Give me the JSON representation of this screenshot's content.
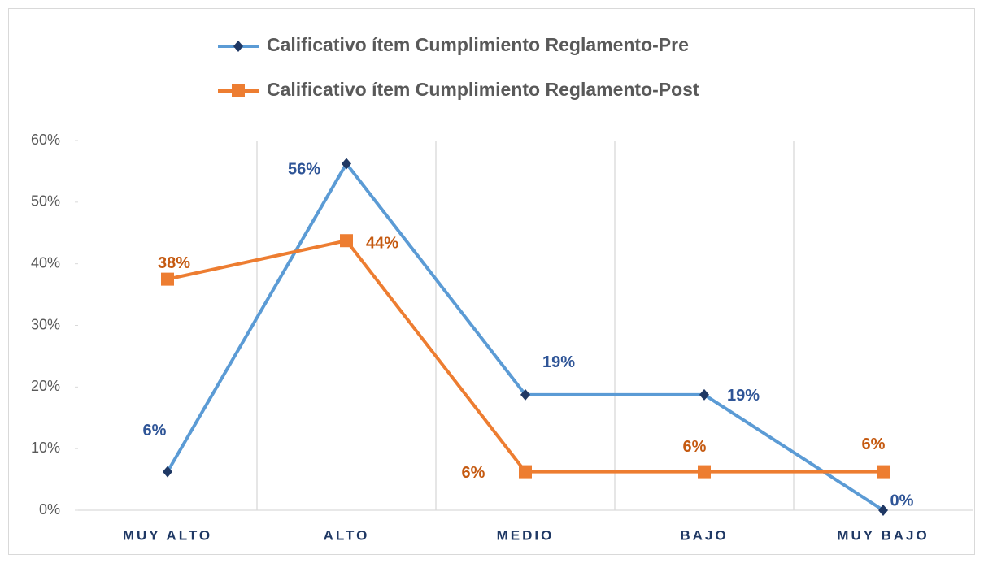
{
  "chart_data": {
    "type": "line",
    "categories": [
      "MUY ALTO",
      "ALTO",
      "MEDIO",
      "BAJO",
      "MUY BAJO"
    ],
    "series": [
      {
        "name": "Calificativo ítem Cumplimiento Reglamento-Pre",
        "color": "#5b9bd5",
        "marker_color": "#1f3864",
        "marker": "diamond",
        "label_color": "#2f5597",
        "values": [
          6.25,
          56.25,
          18.75,
          18.75,
          0
        ],
        "value_labels": [
          "6%",
          "56%",
          "19%",
          "19%",
          "0%"
        ]
      },
      {
        "name": "Calificativo ítem Cumplimiento Reglamento-Post",
        "color": "#ed7d31",
        "marker_color": "#ed7d31",
        "marker": "square",
        "label_color": "#c55a11",
        "values": [
          37.5,
          43.75,
          6.25,
          6.25,
          6.25
        ],
        "value_labels": [
          "38%",
          "44%",
          "6%",
          "6%",
          "6%"
        ]
      }
    ],
    "ylim": [
      0,
      60
    ],
    "yticks": [
      {
        "value": 0,
        "label": "0%"
      },
      {
        "value": 10,
        "label": "10%"
      },
      {
        "value": 20,
        "label": "20%"
      },
      {
        "value": 30,
        "label": "30%"
      },
      {
        "value": 40,
        "label": "40%"
      },
      {
        "value": 50,
        "label": "50%"
      },
      {
        "value": 60,
        "label": "60%"
      }
    ],
    "legend": "top",
    "grid": "vertical"
  }
}
